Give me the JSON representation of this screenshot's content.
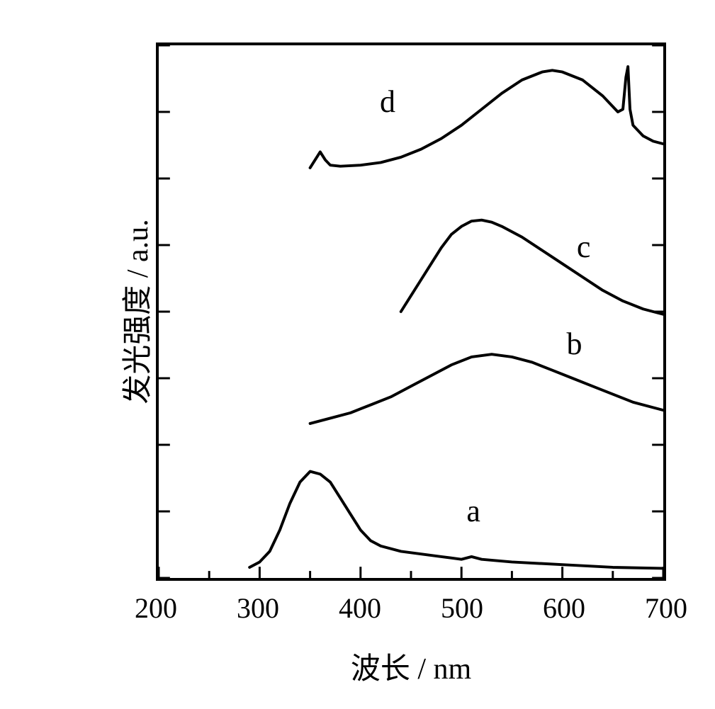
{
  "chart": {
    "type": "line",
    "xlabel": "波长 / nm",
    "ylabel": "发光强度 / a.u.",
    "label_fontsize": 42,
    "tick_fontsize": 40,
    "curve_label_fontsize": 44,
    "xlim": [
      200,
      700
    ],
    "ylim": [
      0,
      100
    ],
    "xticks": [
      200,
      300,
      400,
      500,
      600,
      700
    ],
    "xtick_labels": [
      "200",
      "300",
      "400",
      "500",
      "600",
      "700"
    ],
    "ytick_positions": [
      0,
      12.5,
      25,
      37.5,
      50,
      62.5,
      75,
      87.5,
      100
    ],
    "background_color": "#ffffff",
    "axis_color": "#000000",
    "axis_width": 4,
    "tick_length_major": 16,
    "tick_length_minor": 10,
    "xminor_ticks": [
      250,
      350,
      450,
      550,
      650
    ],
    "line_color": "#000000",
    "line_width": 4,
    "curves": {
      "a": {
        "label": "a",
        "label_pos": {
          "x": 510,
          "y": 14
        },
        "points": [
          [
            290,
            2
          ],
          [
            300,
            3
          ],
          [
            310,
            5
          ],
          [
            320,
            9
          ],
          [
            330,
            14
          ],
          [
            340,
            18
          ],
          [
            350,
            20
          ],
          [
            360,
            19.5
          ],
          [
            370,
            18
          ],
          [
            380,
            15
          ],
          [
            390,
            12
          ],
          [
            400,
            9
          ],
          [
            410,
            7
          ],
          [
            420,
            6
          ],
          [
            440,
            5
          ],
          [
            460,
            4.5
          ],
          [
            480,
            4
          ],
          [
            500,
            3.5
          ],
          [
            510,
            4
          ],
          [
            520,
            3.5
          ],
          [
            550,
            3
          ],
          [
            600,
            2.5
          ],
          [
            650,
            2
          ],
          [
            700,
            1.8
          ]
        ]
      },
      "b": {
        "label": "b",
        "label_pos": {
          "x": 608,
          "y": 45
        },
        "points": [
          [
            350,
            29
          ],
          [
            370,
            30
          ],
          [
            390,
            31
          ],
          [
            410,
            32.5
          ],
          [
            430,
            34
          ],
          [
            450,
            36
          ],
          [
            470,
            38
          ],
          [
            490,
            40
          ],
          [
            510,
            41.5
          ],
          [
            530,
            42
          ],
          [
            550,
            41.5
          ],
          [
            570,
            40.5
          ],
          [
            590,
            39
          ],
          [
            610,
            37.5
          ],
          [
            630,
            36
          ],
          [
            650,
            34.5
          ],
          [
            670,
            33
          ],
          [
            690,
            32
          ],
          [
            700,
            31.5
          ]
        ]
      },
      "c": {
        "label": "c",
        "label_pos": {
          "x": 618,
          "y": 63
        },
        "points": [
          [
            440,
            50
          ],
          [
            450,
            53
          ],
          [
            460,
            56
          ],
          [
            470,
            59
          ],
          [
            480,
            62
          ],
          [
            490,
            64.5
          ],
          [
            500,
            66
          ],
          [
            510,
            67
          ],
          [
            520,
            67.2
          ],
          [
            530,
            66.8
          ],
          [
            540,
            66
          ],
          [
            560,
            64
          ],
          [
            580,
            61.5
          ],
          [
            600,
            59
          ],
          [
            620,
            56.5
          ],
          [
            640,
            54
          ],
          [
            660,
            52
          ],
          [
            680,
            50.5
          ],
          [
            700,
            49.5
          ]
        ]
      },
      "d": {
        "label": "d",
        "label_pos": {
          "x": 425,
          "y": 90
        },
        "points": [
          [
            350,
            77
          ],
          [
            355,
            78.5
          ],
          [
            360,
            80
          ],
          [
            365,
            78.5
          ],
          [
            370,
            77.5
          ],
          [
            380,
            77.3
          ],
          [
            400,
            77.5
          ],
          [
            420,
            78
          ],
          [
            440,
            79
          ],
          [
            460,
            80.5
          ],
          [
            480,
            82.5
          ],
          [
            500,
            85
          ],
          [
            520,
            88
          ],
          [
            540,
            91
          ],
          [
            560,
            93.5
          ],
          [
            580,
            95
          ],
          [
            590,
            95.3
          ],
          [
            600,
            95
          ],
          [
            620,
            93.5
          ],
          [
            640,
            90.5
          ],
          [
            655,
            87.5
          ],
          [
            660,
            88
          ],
          [
            663,
            94
          ],
          [
            665,
            96
          ],
          [
            667,
            88
          ],
          [
            670,
            85
          ],
          [
            680,
            83
          ],
          [
            690,
            82
          ],
          [
            700,
            81.5
          ]
        ]
      }
    }
  }
}
